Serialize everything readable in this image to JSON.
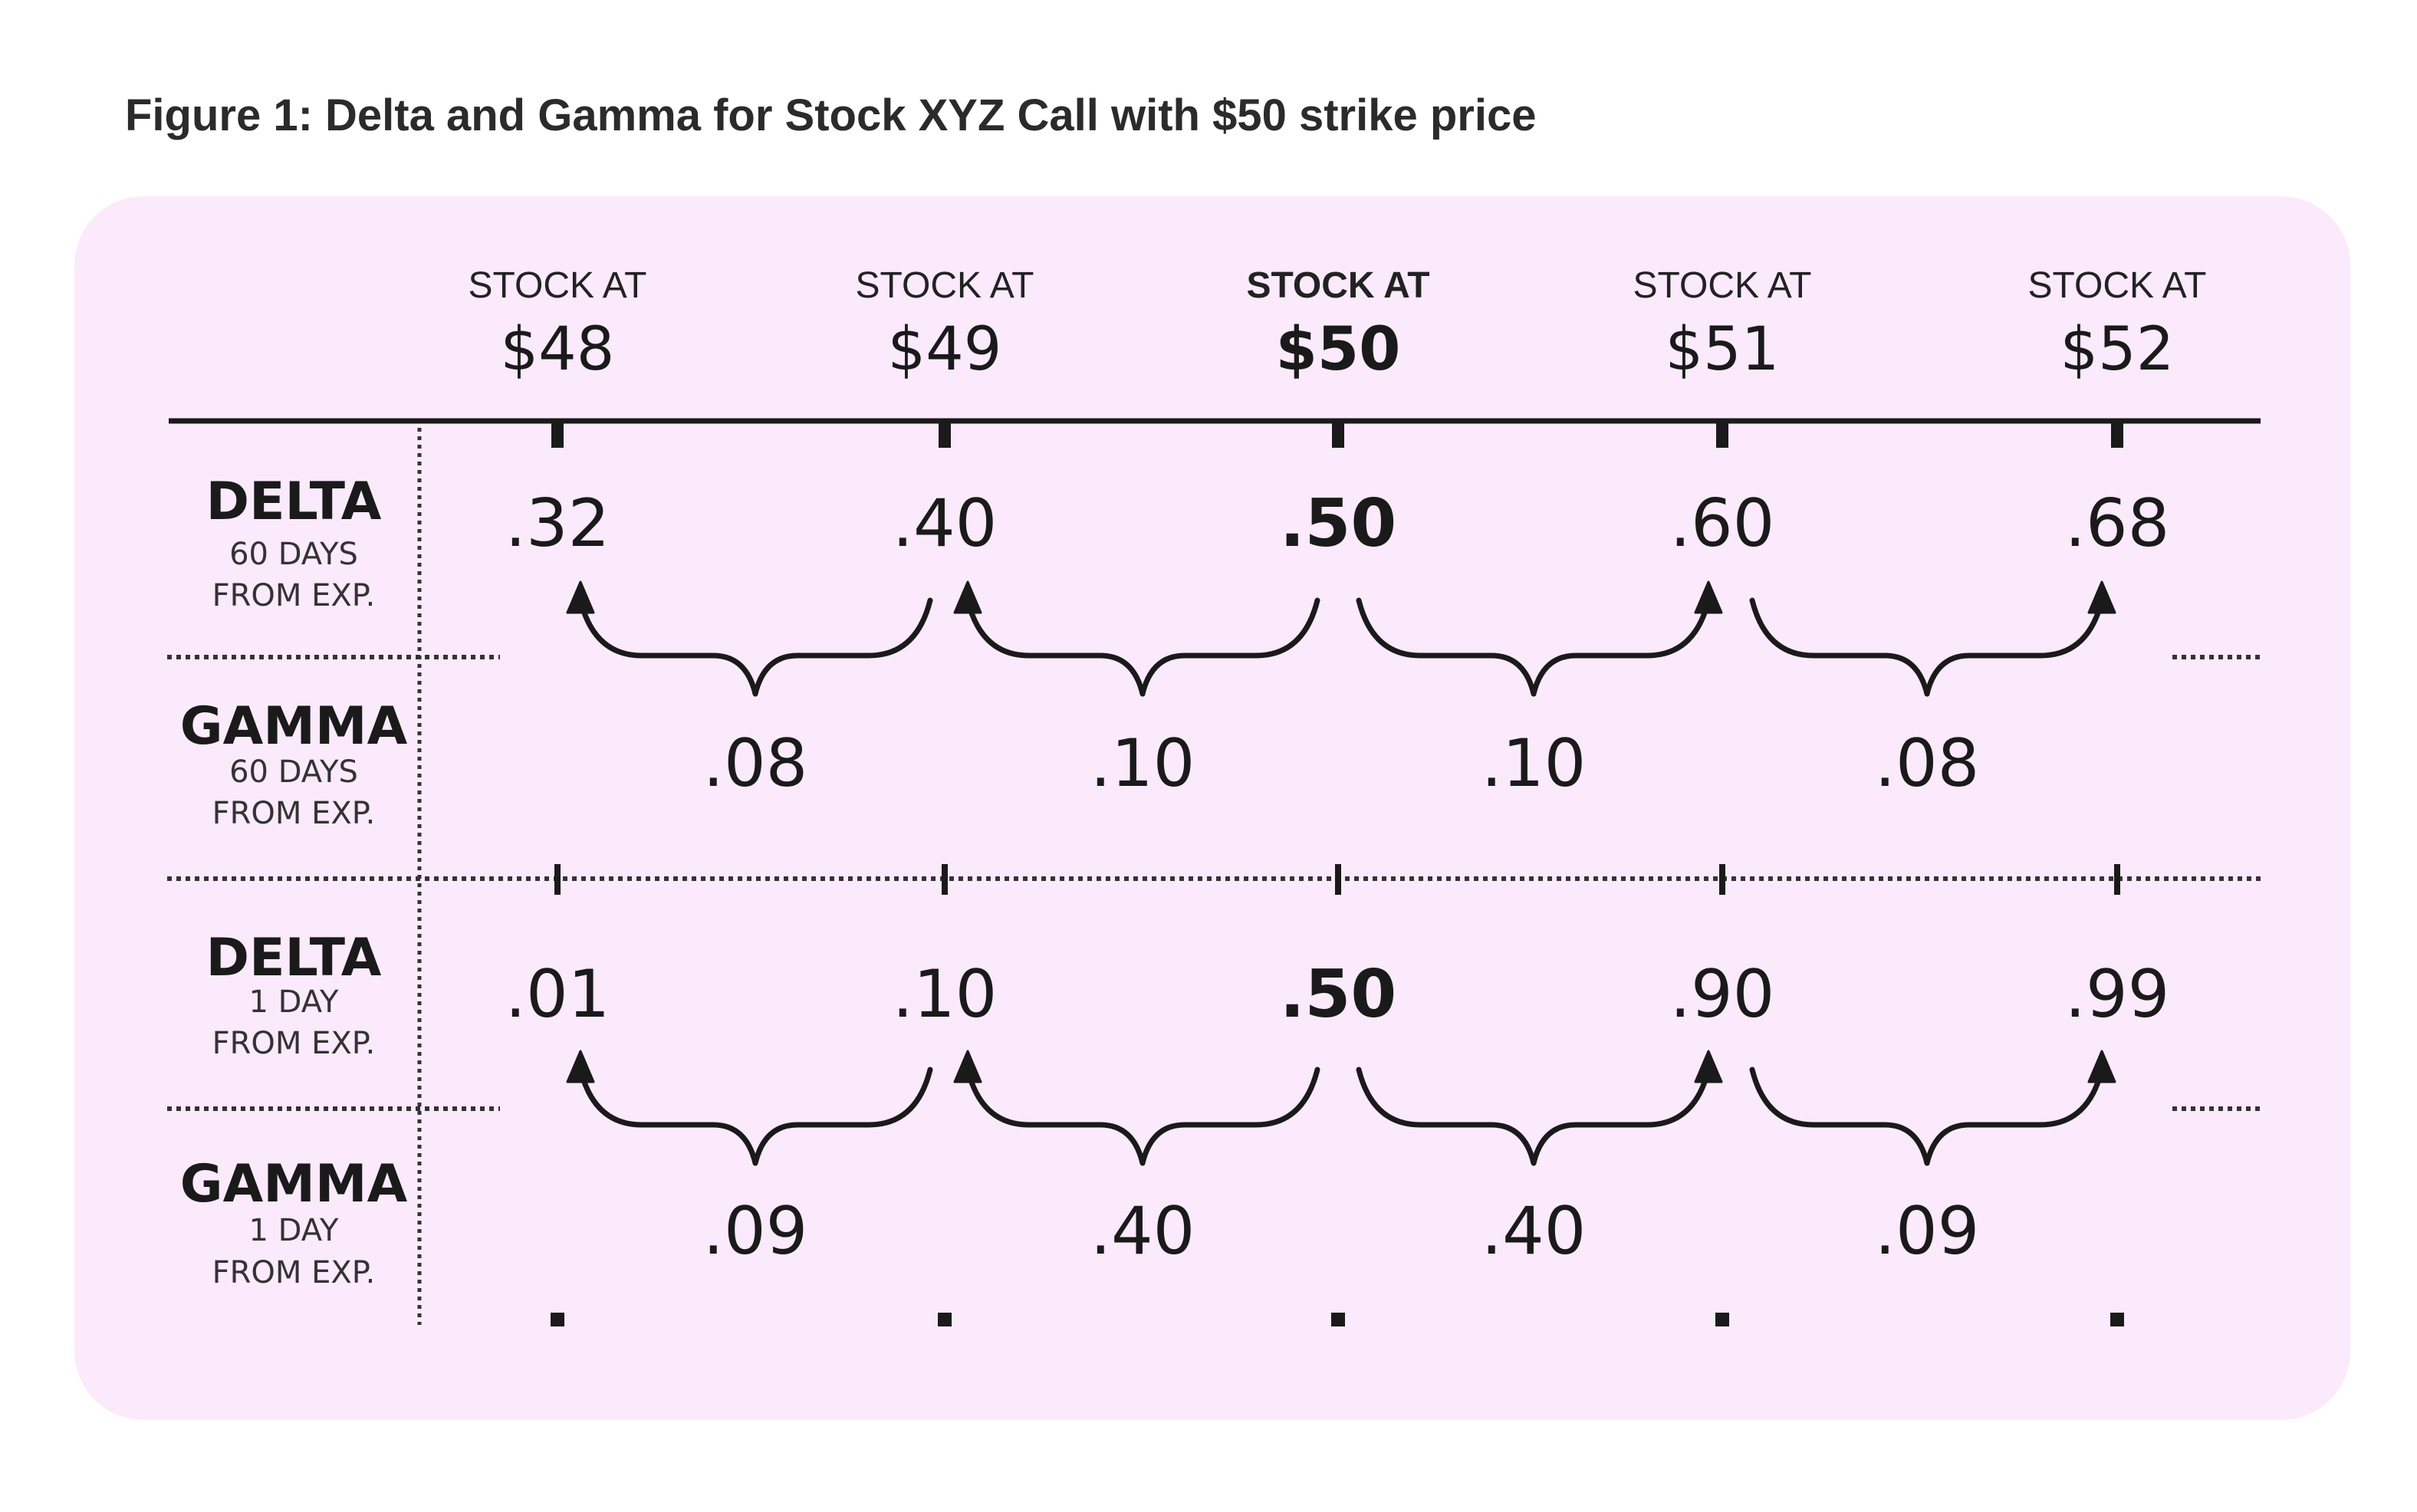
{
  "caption": "Figure 1: Delta and Gamma for Stock XYZ Call with $50 strike price",
  "columns": [
    {
      "header": "STOCK AT",
      "price": "$48"
    },
    {
      "header": "STOCK AT",
      "price": "$49"
    },
    {
      "header": "STOCK AT",
      "price": "$50"
    },
    {
      "header": "STOCK AT",
      "price": "$51"
    },
    {
      "header": "STOCK AT",
      "price": "$52"
    }
  ],
  "highlight_column": 2,
  "rows": [
    {
      "title": "DELTA",
      "line1": "60 DAYS",
      "line2": "FROM EXP."
    },
    {
      "title": "GAMMA",
      "line1": "60 DAYS",
      "line2": "FROM EXP."
    },
    {
      "title": "DELTA",
      "line1": "1 DAY",
      "line2": "FROM EXP."
    },
    {
      "title": "GAMMA",
      "line1": "1 DAY",
      "line2": "FROM EXP."
    }
  ],
  "delta_60": [
    ".32",
    ".40",
    ".50",
    ".60",
    ".68"
  ],
  "gamma_60": [
    ".08",
    ".10",
    ".10",
    ".08"
  ],
  "delta_1": [
    ".01",
    ".10",
    ".50",
    ".90",
    ".99"
  ],
  "gamma_1": [
    ".09",
    ".40",
    ".40",
    ".09"
  ],
  "arrow_directions": [
    "left",
    "left",
    "right",
    "right"
  ],
  "colors": {
    "panel": "#fbeafc",
    "ink": "#1a1a1a",
    "caption": "#2b2b2b"
  }
}
